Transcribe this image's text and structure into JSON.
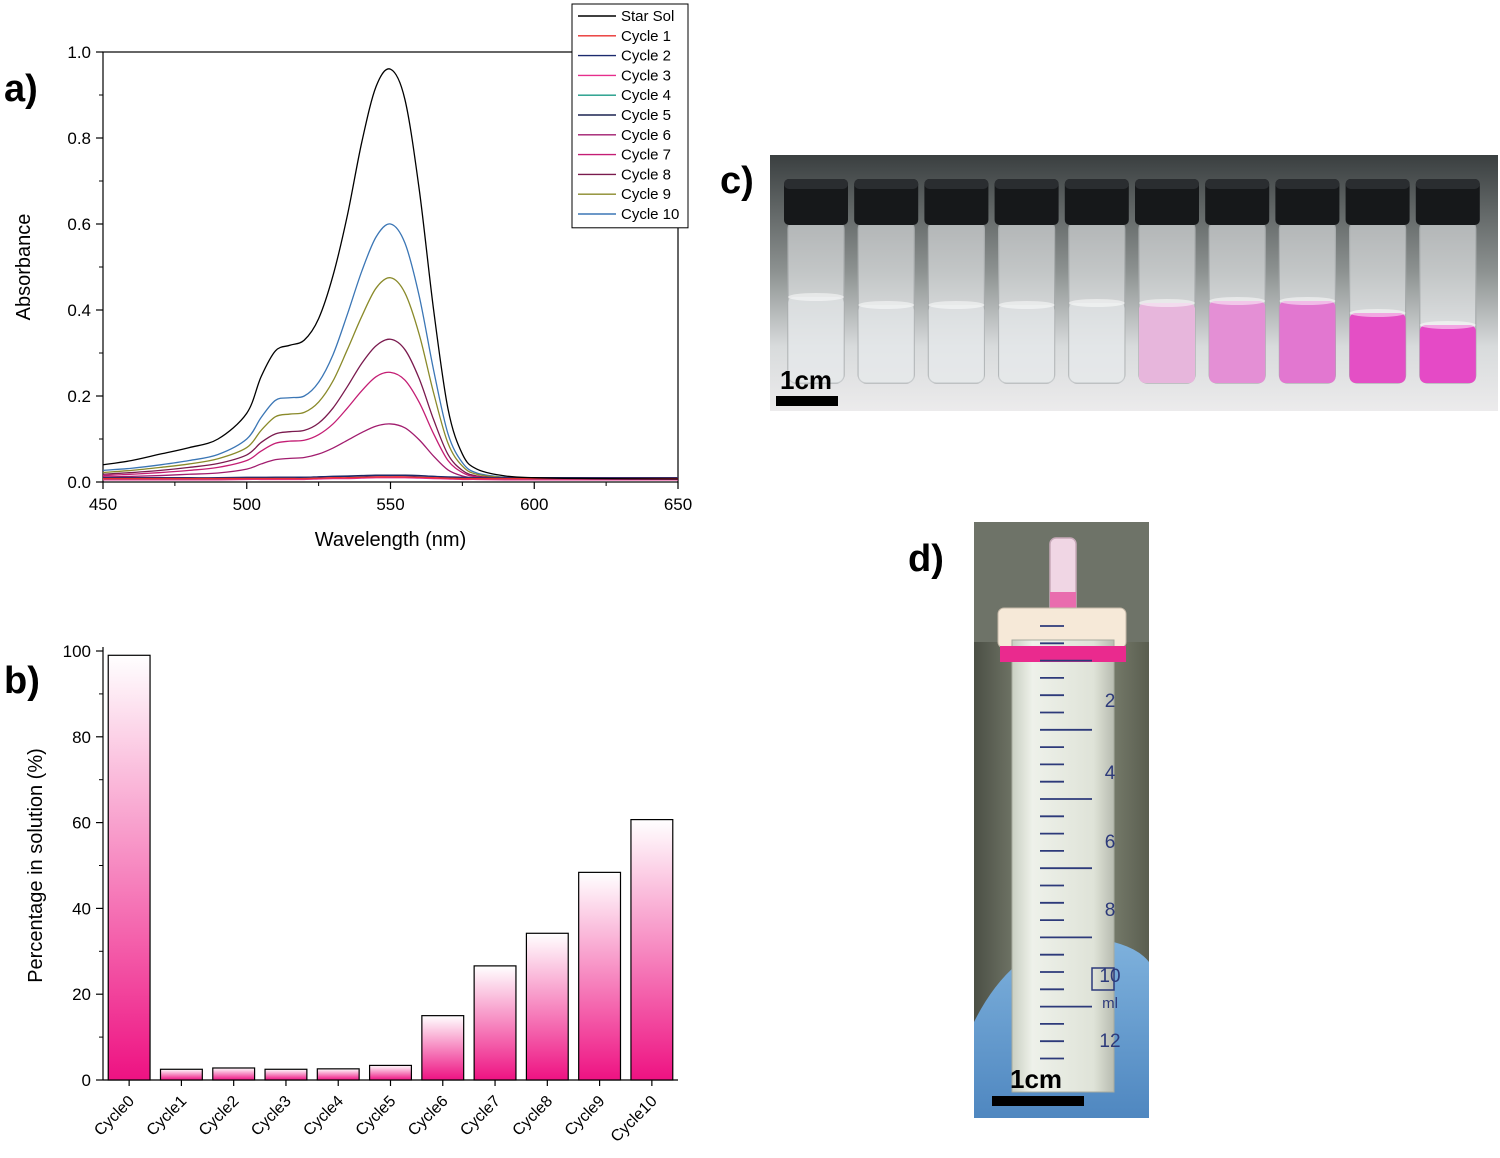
{
  "panel_labels": {
    "a": "a)",
    "b": "b)",
    "c": "c)",
    "d": "d)"
  },
  "photo_c": {
    "scale_label": "1cm",
    "vial_count": 10
  },
  "photo_d": {
    "scale_label": "1cm",
    "syringe_marks": [
      "2",
      "4",
      "6",
      "8",
      "10",
      "ml",
      "12"
    ]
  },
  "chart_data": [
    {
      "type": "line",
      "xlabel": "Wavelength (nm)",
      "ylabel": "Absorbance",
      "xlim": [
        450,
        650
      ],
      "ylim": [
        0,
        1.0
      ],
      "xticks": [
        450,
        500,
        550,
        600,
        650
      ],
      "yticks": [
        0.0,
        0.2,
        0.4,
        0.6,
        0.8,
        1.0
      ],
      "legend_position": "top-right",
      "x": [
        450,
        460,
        470,
        480,
        490,
        500,
        505,
        510,
        515,
        520,
        525,
        530,
        535,
        540,
        545,
        550,
        555,
        560,
        565,
        570,
        575,
        580,
        590,
        600,
        620,
        650
      ],
      "series": [
        {
          "name": "Star Sol",
          "color": "#000000",
          "values": [
            0.04,
            0.05,
            0.065,
            0.08,
            0.1,
            0.16,
            0.245,
            0.305,
            0.318,
            0.33,
            0.38,
            0.48,
            0.62,
            0.79,
            0.92,
            0.96,
            0.89,
            0.68,
            0.4,
            0.17,
            0.065,
            0.03,
            0.014,
            0.01,
            0.008,
            0.007
          ]
        },
        {
          "name": "Cycle 1",
          "color": "#e8302f",
          "values": [
            0.008,
            0.008,
            0.008,
            0.008,
            0.008,
            0.008,
            0.008,
            0.008,
            0.008,
            0.008,
            0.009,
            0.01,
            0.01,
            0.011,
            0.012,
            0.012,
            0.012,
            0.011,
            0.01,
            0.009,
            0.008,
            0.008,
            0.008,
            0.008,
            0.008,
            0.008
          ]
        },
        {
          "name": "Cycle 2",
          "color": "#1c2a6e",
          "values": [
            0.01,
            0.01,
            0.01,
            0.01,
            0.01,
            0.011,
            0.011,
            0.011,
            0.011,
            0.011,
            0.012,
            0.013,
            0.013,
            0.014,
            0.015,
            0.015,
            0.015,
            0.014,
            0.013,
            0.012,
            0.011,
            0.01,
            0.01,
            0.01,
            0.01,
            0.01
          ]
        },
        {
          "name": "Cycle 3",
          "color": "#e62e8c",
          "values": [
            0.005,
            0.005,
            0.005,
            0.005,
            0.005,
            0.006,
            0.006,
            0.006,
            0.006,
            0.006,
            0.007,
            0.008,
            0.008,
            0.009,
            0.01,
            0.01,
            0.01,
            0.009,
            0.008,
            0.007,
            0.006,
            0.006,
            0.005,
            0.005,
            0.005,
            0.005
          ]
        },
        {
          "name": "Cycle 4",
          "color": "#1a9a84",
          "values": [
            0.006,
            0.006,
            0.006,
            0.006,
            0.006,
            0.007,
            0.007,
            0.007,
            0.007,
            0.007,
            0.008,
            0.009,
            0.009,
            0.01,
            0.011,
            0.011,
            0.011,
            0.01,
            0.009,
            0.008,
            0.007,
            0.007,
            0.006,
            0.006,
            0.006,
            0.006
          ]
        },
        {
          "name": "Cycle 5",
          "color": "#1b2450",
          "values": [
            0.009,
            0.009,
            0.009,
            0.009,
            0.009,
            0.01,
            0.01,
            0.011,
            0.011,
            0.011,
            0.012,
            0.013,
            0.014,
            0.015,
            0.016,
            0.016,
            0.016,
            0.015,
            0.013,
            0.011,
            0.01,
            0.009,
            0.009,
            0.009,
            0.009,
            0.009
          ]
        },
        {
          "name": "Cycle 6",
          "color": "#a11c6e",
          "values": [
            0.012,
            0.013,
            0.015,
            0.018,
            0.021,
            0.03,
            0.042,
            0.052,
            0.055,
            0.057,
            0.065,
            0.079,
            0.097,
            0.115,
            0.13,
            0.135,
            0.126,
            0.098,
            0.06,
            0.028,
            0.014,
            0.009,
            0.008,
            0.008,
            0.008,
            0.008
          ]
        },
        {
          "name": "Cycle 7",
          "color": "#c41e74",
          "values": [
            0.015,
            0.018,
            0.022,
            0.027,
            0.034,
            0.05,
            0.072,
            0.09,
            0.095,
            0.097,
            0.11,
            0.135,
            0.172,
            0.212,
            0.245,
            0.255,
            0.237,
            0.185,
            0.112,
            0.05,
            0.022,
            0.012,
            0.009,
            0.008,
            0.008,
            0.008
          ]
        },
        {
          "name": "Cycle 8",
          "color": "#7a1a4e",
          "values": [
            0.018,
            0.022,
            0.027,
            0.034,
            0.043,
            0.063,
            0.092,
            0.112,
            0.117,
            0.12,
            0.137,
            0.172,
            0.222,
            0.276,
            0.317,
            0.332,
            0.308,
            0.24,
            0.145,
            0.064,
            0.027,
            0.014,
            0.009,
            0.008,
            0.008,
            0.008
          ]
        },
        {
          "name": "Cycle 9",
          "color": "#8a8a2a",
          "values": [
            0.022,
            0.027,
            0.034,
            0.042,
            0.054,
            0.08,
            0.12,
            0.152,
            0.158,
            0.162,
            0.186,
            0.235,
            0.308,
            0.385,
            0.451,
            0.475,
            0.44,
            0.343,
            0.207,
            0.09,
            0.037,
            0.018,
            0.01,
            0.008,
            0.008,
            0.008
          ]
        },
        {
          "name": "Cycle 10",
          "color": "#3b76b5",
          "values": [
            0.027,
            0.032,
            0.04,
            0.05,
            0.064,
            0.1,
            0.15,
            0.19,
            0.196,
            0.2,
            0.232,
            0.296,
            0.39,
            0.49,
            0.57,
            0.6,
            0.556,
            0.432,
            0.26,
            0.112,
            0.045,
            0.021,
            0.011,
            0.009,
            0.008,
            0.008
          ]
        }
      ]
    },
    {
      "type": "bar",
      "xlabel": "",
      "ylabel": "Percentage in solution (%)",
      "ylim": [
        0,
        100
      ],
      "yticks": [
        0,
        20,
        40,
        60,
        80,
        100
      ],
      "categories": [
        "Cycle0",
        "Cycle1",
        "Cycle2",
        "Cycle3",
        "Cycle4",
        "Cycle5",
        "Cycle6",
        "Cycle7",
        "Cycle8",
        "Cycle9",
        "Cycle10"
      ],
      "values": [
        99,
        2.5,
        2.8,
        2.5,
        2.6,
        3.4,
        15,
        26.6,
        34.2,
        48.4,
        60.7
      ],
      "bar_gradient": [
        "#ee1282",
        "#ffffff"
      ]
    }
  ]
}
